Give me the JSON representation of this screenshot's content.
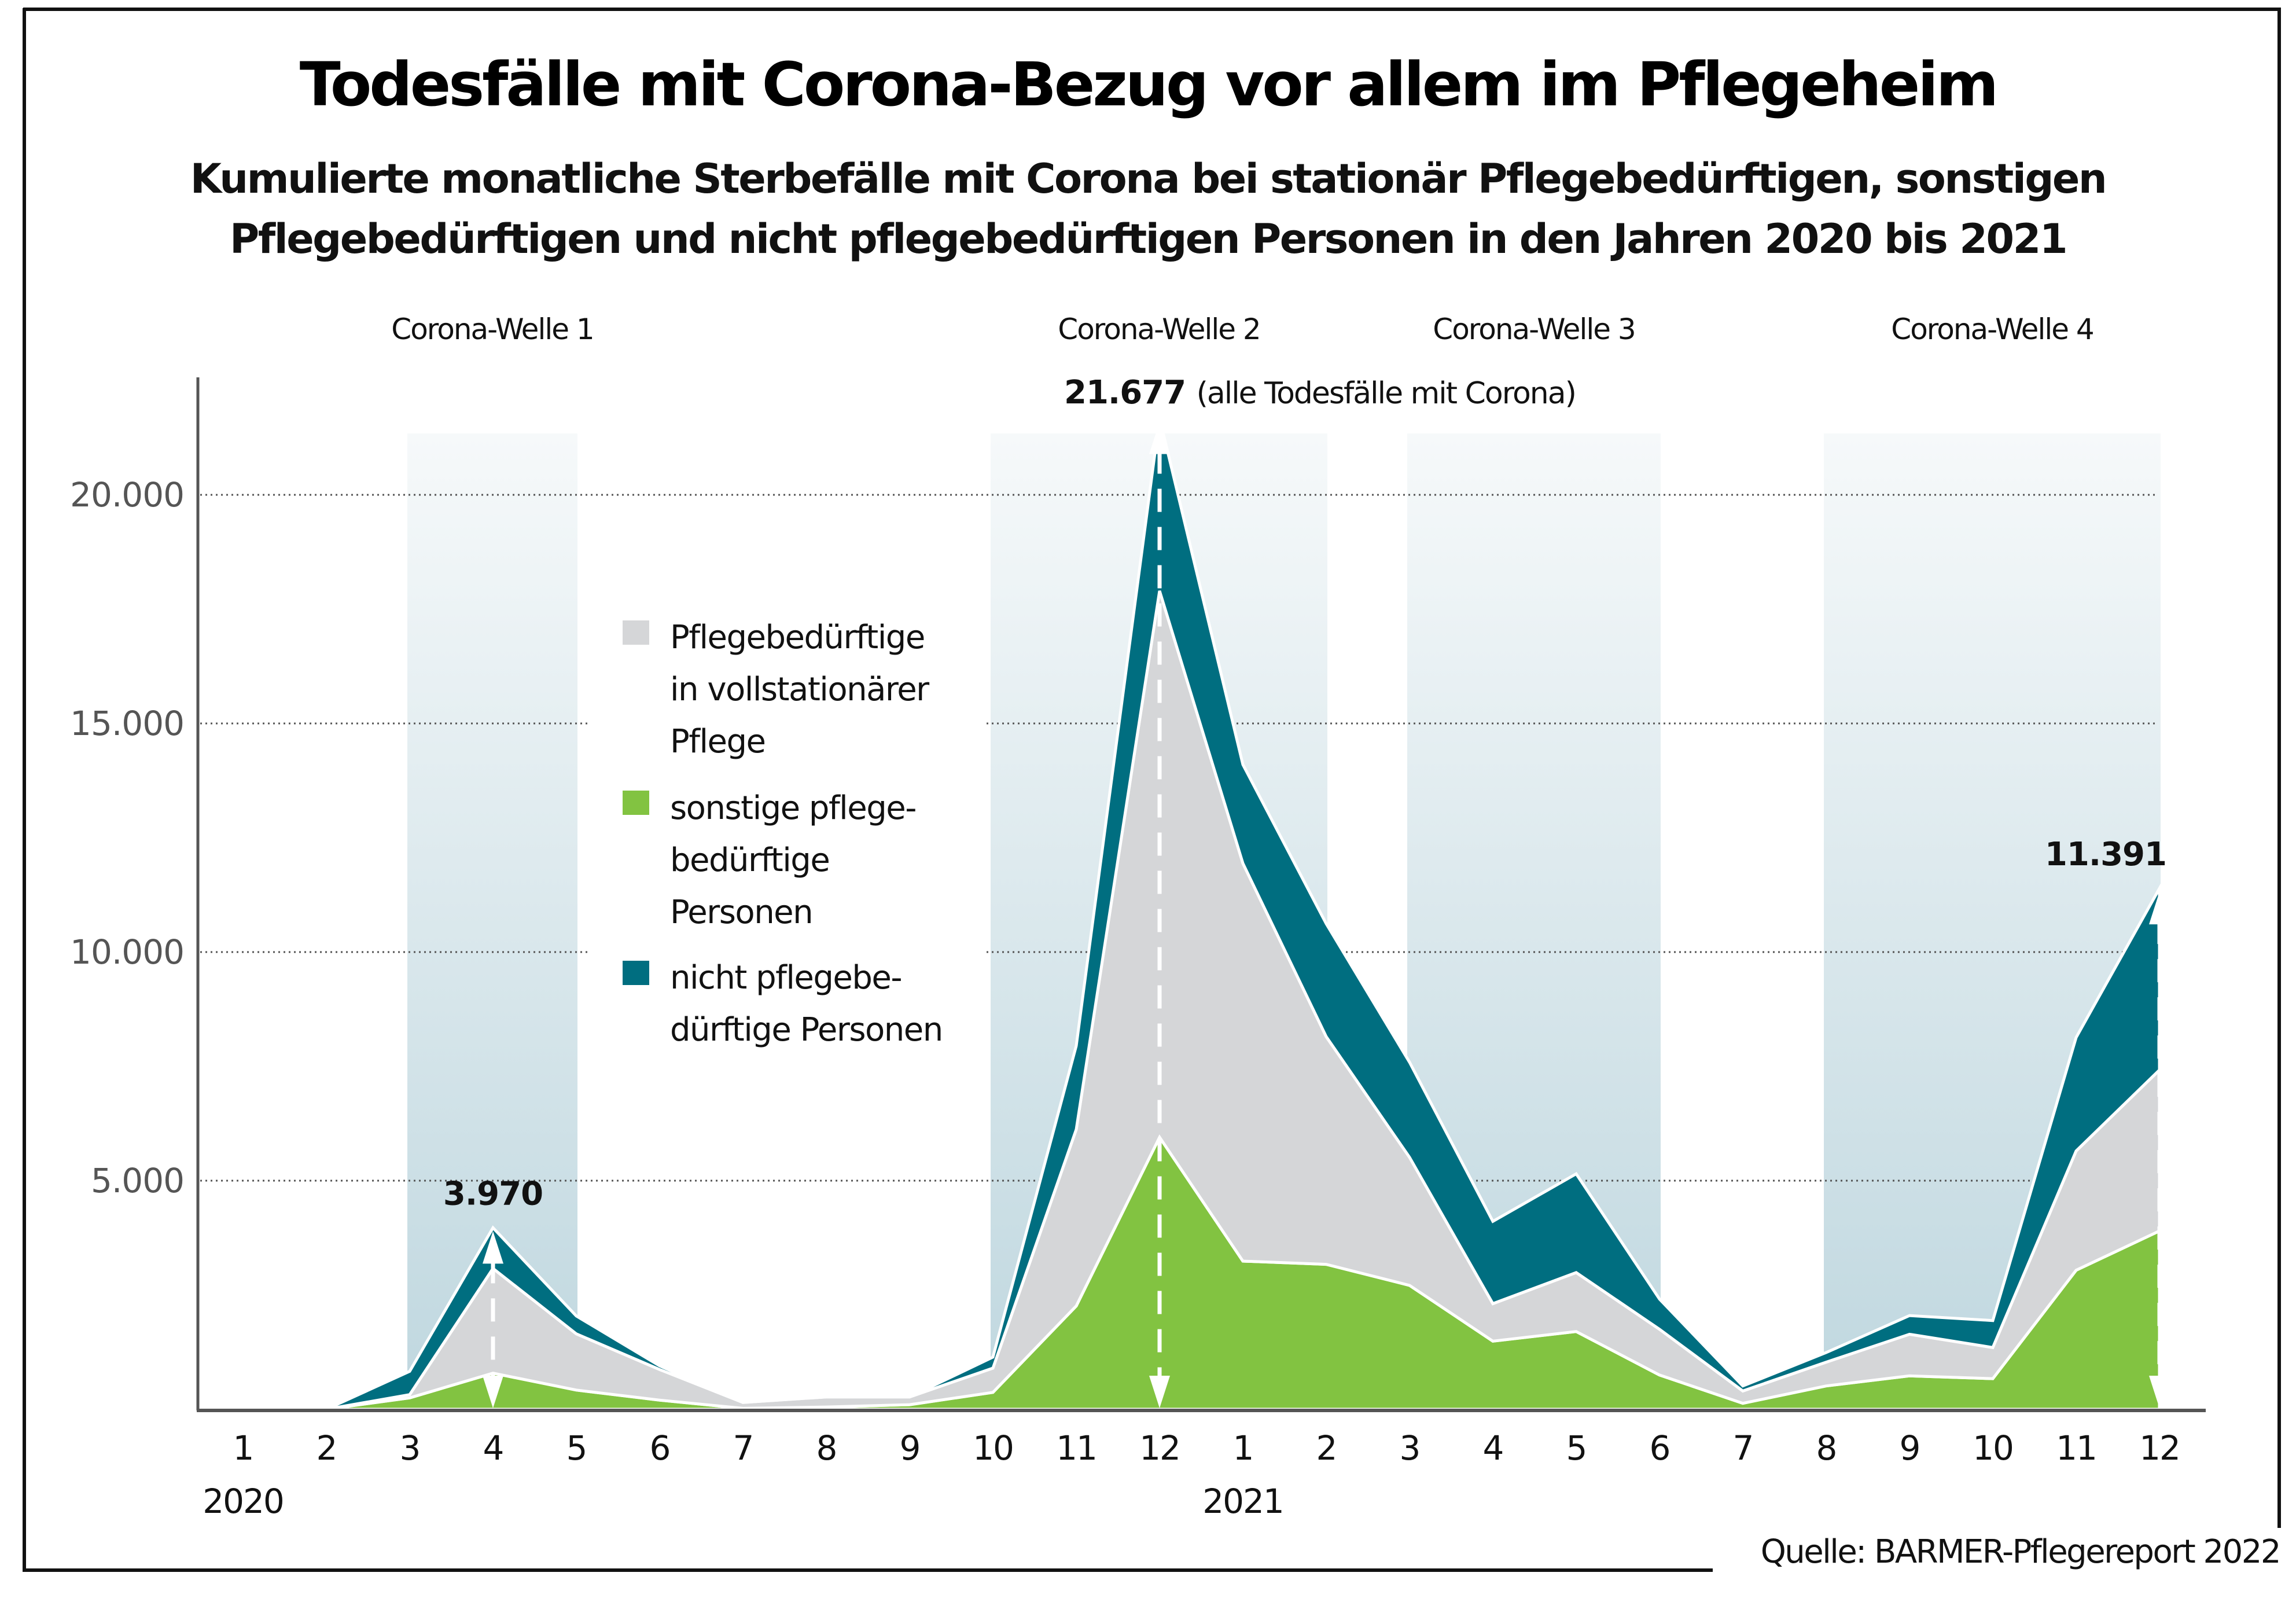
{
  "title": "Todesfälle mit Corona-Bezug vor allem im Pflegeheim",
  "subtitle_lines": [
    "Kumulierte monatliche Sterbefälle mit Corona bei stationär Pflegebedürftigen, sonstigen",
    "Pflegebedürftigen und nicht pflegebedürftigen Personen in den Jahren 2020 bis 2021"
  ],
  "source": "Quelle: BARMER-Pflegereport 2022",
  "colors": {
    "stationaer": "#d5d6d8",
    "sonstige": "#82c341",
    "nicht": "#006e80",
    "wave_band_top": "#f6f9fa",
    "wave_band_bottom": "#bfd7df",
    "gridline": "#555555",
    "axis": "#555555"
  },
  "chart_data": {
    "type": "area",
    "stacked": true,
    "title": "Todesfälle mit Corona-Bezug vor allem im Pflegeheim",
    "xlabel": "",
    "ylabel": "",
    "ylim": [
      0,
      22000
    ],
    "yticks": [
      5000,
      10000,
      15000,
      20000
    ],
    "ytick_labels": [
      "5.000",
      "10.000",
      "15.000",
      "20.000"
    ],
    "grid": "horizontal-dotted",
    "legend_position": "center-left",
    "categories": [
      "1",
      "2",
      "3",
      "4",
      "5",
      "6",
      "7",
      "8",
      "9",
      "10",
      "11",
      "12",
      "1",
      "2",
      "3",
      "4",
      "5",
      "6",
      "7",
      "8",
      "9",
      "10",
      "11",
      "12"
    ],
    "years": [
      {
        "label": "2020",
        "start_index": 0
      },
      {
        "label": "2021",
        "start_index": 12
      }
    ],
    "series": [
      {
        "key": "sonstige",
        "name": "sonstige pflegebedürftige Personen",
        "legend_lines": [
          "sonstige pflege-",
          "bedürftige",
          "Personen"
        ],
        "values": [
          0,
          0,
          250,
          790,
          420,
          200,
          20,
          50,
          100,
          370,
          2260,
          5950,
          3240,
          3170,
          2710,
          1490,
          1700,
          750,
          130,
          510,
          730,
          670,
          3040,
          3900
        ]
      },
      {
        "key": "stationaer",
        "name": "Pflegebedürftige in vollstationärer Pflege",
        "legend_lines": [
          "Pflegebedürftige",
          "in vollstationärer",
          "Pflege"
        ],
        "values": [
          0,
          0,
          70,
          2290,
          1230,
          670,
          130,
          220,
          170,
          530,
          3860,
          11950,
          8700,
          4980,
          2800,
          820,
          1290,
          1000,
          270,
          520,
          910,
          680,
          2610,
          3520
        ]
      },
      {
        "key": "nicht",
        "name": "nicht pflegebedürftige Personen",
        "legend_lines": [
          "nicht pflegebe-",
          "dürftige Personen"
        ],
        "values": [
          0,
          0,
          510,
          890,
          390,
          80,
          0,
          0,
          0,
          240,
          1830,
          3777,
          2160,
          2470,
          2080,
          1800,
          2160,
          660,
          110,
          210,
          410,
          590,
          2480,
          3971
        ]
      }
    ],
    "totals": [
      0,
      0,
      830,
      3970,
      2040,
      950,
      150,
      270,
      270,
      1140,
      7950,
      21677,
      14100,
      10620,
      7590,
      4110,
      5150,
      2410,
      510,
      1240,
      2050,
      1940,
      8130,
      11391
    ],
    "waves": [
      {
        "label": "Corona-Welle 1",
        "from_index": 2,
        "to_index": 4
      },
      {
        "label": "Corona-Welle 2",
        "from_index": 9,
        "to_index": 13
      },
      {
        "label": "Corona-Welle 3",
        "from_index": 14,
        "to_index": 17
      },
      {
        "label": "Corona-Welle 4",
        "from_index": 19,
        "to_index": 23
      }
    ],
    "annotations": [
      {
        "index": 3,
        "value": 3970,
        "label": "3.970",
        "note": ""
      },
      {
        "index": 11,
        "value": 21677,
        "label": "21.677",
        "note": "(alle Todesfälle mit Corona)"
      },
      {
        "index": 23,
        "value": 11391,
        "label": "11.391",
        "note": ""
      }
    ]
  }
}
